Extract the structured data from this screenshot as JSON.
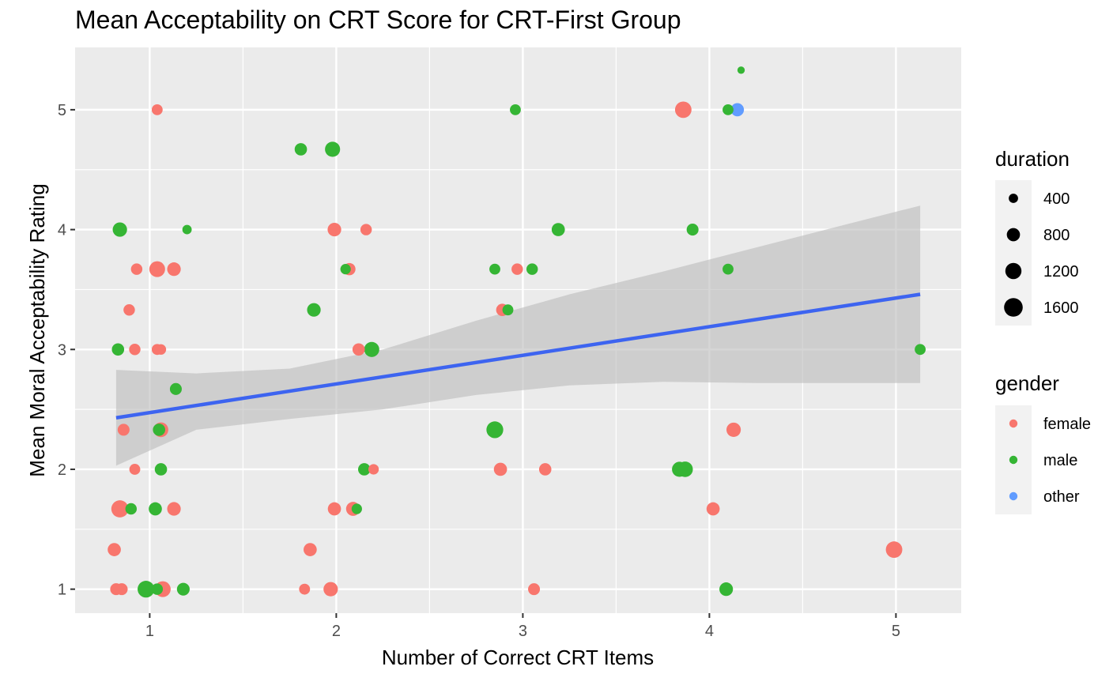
{
  "chart_data": {
    "type": "scatter",
    "title": "Mean Acceptability on CRT Score for CRT-First Group",
    "xlabel": "Number of Correct CRT Items",
    "ylabel": "Mean Moral Acceptability Rating",
    "xlim": [
      0.6,
      5.35
    ],
    "ylim": [
      0.8,
      5.52
    ],
    "x_ticks": [
      1,
      2,
      3,
      4,
      5
    ],
    "y_ticks": [
      1,
      2,
      3,
      4,
      5
    ],
    "grid": true,
    "legend_placement": "right",
    "colors": {
      "female": "#F8766D",
      "male": "#35B534",
      "other": "#619CFF",
      "trend_line": "#3D64F0",
      "confidence_band": "#BDBDBD",
      "panel_background": "#EBEBEB",
      "gridline": "#FFFFFF"
    },
    "legends": {
      "duration": {
        "title": "duration",
        "entries": [
          {
            "label": "400",
            "value": 400
          },
          {
            "label": "800",
            "value": 800
          },
          {
            "label": "1200",
            "value": 1200
          },
          {
            "label": "1600",
            "value": 1600
          }
        ]
      },
      "gender": {
        "title": "gender",
        "entries": [
          {
            "label": "female",
            "key": "female"
          },
          {
            "label": "male",
            "key": "male"
          },
          {
            "label": "other",
            "key": "other"
          }
        ]
      }
    },
    "trend": {
      "x": [
        0.82,
        5.13
      ],
      "y": [
        2.43,
        3.46
      ]
    },
    "confidence_band": {
      "x": [
        0.82,
        1.25,
        1.75,
        2.25,
        2.75,
        3.25,
        3.75,
        4.25,
        4.75,
        5.13
      ],
      "upper": [
        2.83,
        2.8,
        2.84,
        3.0,
        3.24,
        3.46,
        3.65,
        3.85,
        4.05,
        4.2
      ],
      "lower": [
        2.03,
        2.33,
        2.42,
        2.5,
        2.62,
        2.7,
        2.73,
        2.72,
        2.72,
        2.72
      ]
    },
    "points": [
      {
        "x": 4.17,
        "y": 5.33,
        "gender": "male",
        "duration": 250
      },
      {
        "x": 1.04,
        "y": 5.0,
        "gender": "female",
        "duration": 550
      },
      {
        "x": 2.96,
        "y": 5.0,
        "gender": "male",
        "duration": 550
      },
      {
        "x": 3.86,
        "y": 5.0,
        "gender": "female",
        "duration": 1250
      },
      {
        "x": 4.1,
        "y": 5.0,
        "gender": "male",
        "duration": 550
      },
      {
        "x": 4.15,
        "y": 5.0,
        "gender": "other",
        "duration": 800
      },
      {
        "x": 1.81,
        "y": 4.67,
        "gender": "male",
        "duration": 700
      },
      {
        "x": 1.98,
        "y": 4.67,
        "gender": "male",
        "duration": 1050
      },
      {
        "x": 0.84,
        "y": 4.0,
        "gender": "male",
        "duration": 950
      },
      {
        "x": 1.2,
        "y": 4.0,
        "gender": "male",
        "duration": 400
      },
      {
        "x": 1.99,
        "y": 4.0,
        "gender": "female",
        "duration": 850
      },
      {
        "x": 2.16,
        "y": 4.0,
        "gender": "female",
        "duration": 600
      },
      {
        "x": 3.19,
        "y": 4.0,
        "gender": "male",
        "duration": 800
      },
      {
        "x": 3.91,
        "y": 4.0,
        "gender": "male",
        "duration": 650
      },
      {
        "x": 0.93,
        "y": 3.67,
        "gender": "female",
        "duration": 600
      },
      {
        "x": 1.04,
        "y": 3.67,
        "gender": "female",
        "duration": 1150
      },
      {
        "x": 1.13,
        "y": 3.67,
        "gender": "female",
        "duration": 850
      },
      {
        "x": 2.05,
        "y": 3.67,
        "gender": "male",
        "duration": 500
      },
      {
        "x": 2.07,
        "y": 3.67,
        "gender": "female",
        "duration": 700
      },
      {
        "x": 2.85,
        "y": 3.67,
        "gender": "male",
        "duration": 550
      },
      {
        "x": 2.97,
        "y": 3.67,
        "gender": "female",
        "duration": 600
      },
      {
        "x": 3.05,
        "y": 3.67,
        "gender": "male",
        "duration": 600
      },
      {
        "x": 4.1,
        "y": 3.67,
        "gender": "male",
        "duration": 550
      },
      {
        "x": 0.89,
        "y": 3.33,
        "gender": "female",
        "duration": 600
      },
      {
        "x": 1.88,
        "y": 3.33,
        "gender": "male",
        "duration": 850
      },
      {
        "x": 2.89,
        "y": 3.33,
        "gender": "female",
        "duration": 700
      },
      {
        "x": 2.92,
        "y": 3.33,
        "gender": "male",
        "duration": 550
      },
      {
        "x": 0.83,
        "y": 3.0,
        "gender": "male",
        "duration": 700
      },
      {
        "x": 0.92,
        "y": 3.0,
        "gender": "female",
        "duration": 600
      },
      {
        "x": 1.04,
        "y": 3.0,
        "gender": "female",
        "duration": 550
      },
      {
        "x": 1.06,
        "y": 3.0,
        "gender": "female",
        "duration": 500
      },
      {
        "x": 2.12,
        "y": 3.0,
        "gender": "female",
        "duration": 700
      },
      {
        "x": 2.19,
        "y": 3.0,
        "gender": "male",
        "duration": 1050
      },
      {
        "x": 5.13,
        "y": 3.0,
        "gender": "male",
        "duration": 550
      },
      {
        "x": 1.14,
        "y": 2.67,
        "gender": "male",
        "duration": 650
      },
      {
        "x": 0.86,
        "y": 2.33,
        "gender": "female",
        "duration": 650
      },
      {
        "x": 1.05,
        "y": 2.33,
        "gender": "male",
        "duration": 700
      },
      {
        "x": 1.06,
        "y": 2.33,
        "gender": "female",
        "duration": 1000
      },
      {
        "x": 2.85,
        "y": 2.33,
        "gender": "male",
        "duration": 1300
      },
      {
        "x": 4.13,
        "y": 2.33,
        "gender": "female",
        "duration": 950
      },
      {
        "x": 0.92,
        "y": 2.0,
        "gender": "female",
        "duration": 550
      },
      {
        "x": 1.06,
        "y": 2.0,
        "gender": "male",
        "duration": 700
      },
      {
        "x": 2.15,
        "y": 2.0,
        "gender": "male",
        "duration": 700
      },
      {
        "x": 2.2,
        "y": 2.0,
        "gender": "female",
        "duration": 500
      },
      {
        "x": 2.88,
        "y": 2.0,
        "gender": "female",
        "duration": 800
      },
      {
        "x": 3.12,
        "y": 2.0,
        "gender": "female",
        "duration": 700
      },
      {
        "x": 3.84,
        "y": 2.0,
        "gender": "male",
        "duration": 1050
      },
      {
        "x": 3.87,
        "y": 2.0,
        "gender": "male",
        "duration": 1100
      },
      {
        "x": 0.84,
        "y": 1.67,
        "gender": "female",
        "duration": 1350
      },
      {
        "x": 0.9,
        "y": 1.67,
        "gender": "male",
        "duration": 600
      },
      {
        "x": 1.03,
        "y": 1.67,
        "gender": "male",
        "duration": 800
      },
      {
        "x": 1.13,
        "y": 1.67,
        "gender": "female",
        "duration": 850
      },
      {
        "x": 1.99,
        "y": 1.67,
        "gender": "female",
        "duration": 800
      },
      {
        "x": 2.09,
        "y": 1.67,
        "gender": "female",
        "duration": 900
      },
      {
        "x": 2.11,
        "y": 1.67,
        "gender": "male",
        "duration": 500
      },
      {
        "x": 4.02,
        "y": 1.67,
        "gender": "female",
        "duration": 800
      },
      {
        "x": 0.81,
        "y": 1.33,
        "gender": "female",
        "duration": 800
      },
      {
        "x": 1.86,
        "y": 1.33,
        "gender": "female",
        "duration": 800
      },
      {
        "x": 4.99,
        "y": 1.33,
        "gender": "female",
        "duration": 1250
      },
      {
        "x": 0.82,
        "y": 1.0,
        "gender": "female",
        "duration": 650
      },
      {
        "x": 0.85,
        "y": 1.0,
        "gender": "female",
        "duration": 650
      },
      {
        "x": 0.98,
        "y": 1.0,
        "gender": "male",
        "duration": 1300
      },
      {
        "x": 1.04,
        "y": 1.0,
        "gender": "male",
        "duration": 600
      },
      {
        "x": 1.07,
        "y": 1.0,
        "gender": "female",
        "duration": 1150
      },
      {
        "x": 1.18,
        "y": 1.0,
        "gender": "male",
        "duration": 750
      },
      {
        "x": 1.83,
        "y": 1.0,
        "gender": "female",
        "duration": 550
      },
      {
        "x": 1.97,
        "y": 1.0,
        "gender": "female",
        "duration": 950
      },
      {
        "x": 3.06,
        "y": 1.0,
        "gender": "female",
        "duration": 650
      },
      {
        "x": 4.09,
        "y": 1.0,
        "gender": "male",
        "duration": 850
      }
    ]
  }
}
